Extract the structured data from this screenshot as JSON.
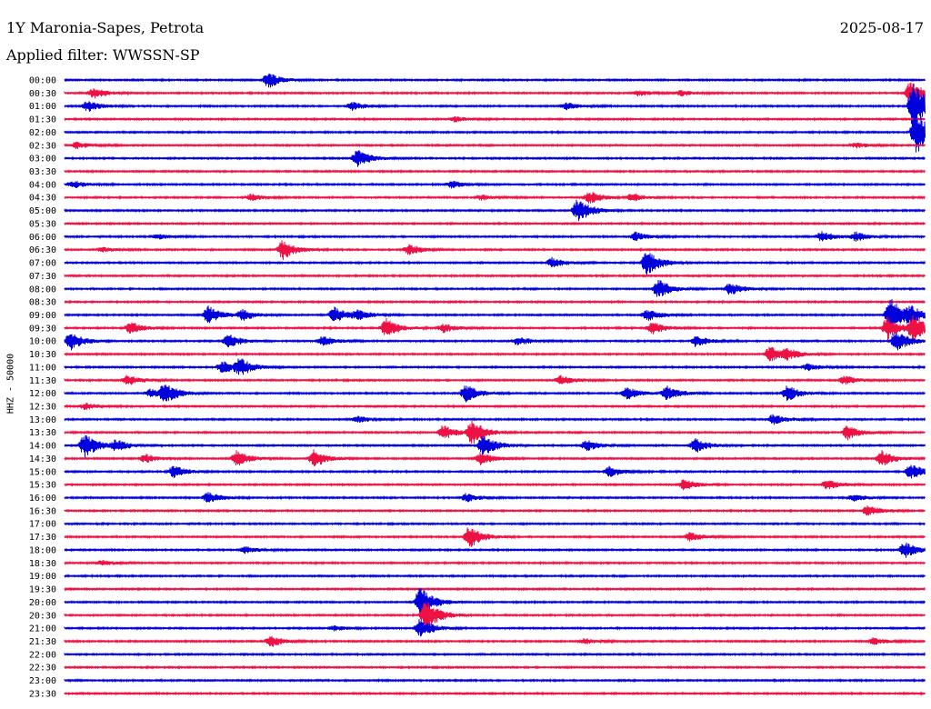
{
  "header": {
    "station": "1Y Maronia-Sapes, Petrota",
    "date": "2025-08-17",
    "filter": "Applied filter: WWSSN-SP"
  },
  "axis_label": "HHZ - 50000",
  "colors": {
    "even_trace": "#0000dd",
    "odd_trace": "#ee1144"
  },
  "chart_data": {
    "type": "line",
    "title": "1Y Maronia-Sapes, Petrota",
    "ylabel": "HHZ - 50000",
    "row_labels": [
      "00:00",
      "00:30",
      "01:00",
      "01:30",
      "02:00",
      "02:30",
      "03:00",
      "03:30",
      "04:00",
      "04:30",
      "05:00",
      "05:30",
      "06:00",
      "06:30",
      "07:00",
      "07:30",
      "08:00",
      "08:30",
      "09:00",
      "09:30",
      "10:00",
      "10:30",
      "11:00",
      "11:30",
      "12:00",
      "12:30",
      "13:00",
      "13:30",
      "14:00",
      "14:30",
      "15:00",
      "15:30",
      "16:00",
      "16:30",
      "17:00",
      "17:30",
      "18:00",
      "18:30",
      "19:00",
      "19:30",
      "20:00",
      "20:30",
      "21:00",
      "21:30",
      "22:00",
      "22:30",
      "23:00",
      "23:30"
    ],
    "note_colors": "rows alternate blue / red",
    "events": [
      {
        "row": 0,
        "minute": 7.1,
        "amp": 9
      },
      {
        "row": 1,
        "minute": 1.0,
        "amp": 6
      },
      {
        "row": 1,
        "minute": 20.0,
        "amp": 3
      },
      {
        "row": 1,
        "minute": 21.5,
        "amp": 3
      },
      {
        "row": 1,
        "minute": 29.5,
        "amp": 14
      },
      {
        "row": 2,
        "minute": 0.8,
        "amp": 6
      },
      {
        "row": 2,
        "minute": 10.0,
        "amp": 5
      },
      {
        "row": 2,
        "minute": 17.5,
        "amp": 4
      },
      {
        "row": 2,
        "minute": 29.6,
        "amp": 30
      },
      {
        "row": 3,
        "minute": 13.6,
        "amp": 3
      },
      {
        "row": 4,
        "minute": 29.7,
        "amp": 25
      },
      {
        "row": 5,
        "minute": 0.4,
        "amp": 4
      },
      {
        "row": 5,
        "minute": 27.6,
        "amp": 3
      },
      {
        "row": 6,
        "minute": 10.2,
        "amp": 10
      },
      {
        "row": 8,
        "minute": 0.3,
        "amp": 4
      },
      {
        "row": 8,
        "minute": 13.5,
        "amp": 4
      },
      {
        "row": 9,
        "minute": 6.5,
        "amp": 4
      },
      {
        "row": 9,
        "minute": 14.5,
        "amp": 3
      },
      {
        "row": 9,
        "minute": 18.3,
        "amp": 7
      },
      {
        "row": 9,
        "minute": 19.8,
        "amp": 5
      },
      {
        "row": 10,
        "minute": 17.9,
        "amp": 14
      },
      {
        "row": 12,
        "minute": 3.2,
        "amp": 3
      },
      {
        "row": 12,
        "minute": 19.9,
        "amp": 5
      },
      {
        "row": 12,
        "minute": 26.4,
        "amp": 6
      },
      {
        "row": 12,
        "minute": 27.6,
        "amp": 5
      },
      {
        "row": 13,
        "minute": 1.3,
        "amp": 3
      },
      {
        "row": 13,
        "minute": 7.6,
        "amp": 11
      },
      {
        "row": 13,
        "minute": 12.0,
        "amp": 6
      },
      {
        "row": 14,
        "minute": 17.0,
        "amp": 6
      },
      {
        "row": 14,
        "minute": 20.3,
        "amp": 14
      },
      {
        "row": 16,
        "minute": 20.7,
        "amp": 11
      },
      {
        "row": 16,
        "minute": 23.2,
        "amp": 7
      },
      {
        "row": 18,
        "minute": 5.0,
        "amp": 10
      },
      {
        "row": 18,
        "minute": 6.2,
        "amp": 6
      },
      {
        "row": 18,
        "minute": 9.4,
        "amp": 9
      },
      {
        "row": 18,
        "minute": 10.2,
        "amp": 5
      },
      {
        "row": 18,
        "minute": 20.3,
        "amp": 7
      },
      {
        "row": 18,
        "minute": 28.8,
        "amp": 20
      },
      {
        "row": 18,
        "minute": 29.5,
        "amp": 8
      },
      {
        "row": 19,
        "minute": 2.3,
        "amp": 7
      },
      {
        "row": 19,
        "minute": 11.2,
        "amp": 11
      },
      {
        "row": 19,
        "minute": 13.2,
        "amp": 5
      },
      {
        "row": 19,
        "minute": 20.5,
        "amp": 7
      },
      {
        "row": 19,
        "minute": 28.7,
        "amp": 13
      },
      {
        "row": 19,
        "minute": 29.6,
        "amp": 14
      },
      {
        "row": 20,
        "minute": 0.2,
        "amp": 10
      },
      {
        "row": 20,
        "minute": 5.7,
        "amp": 8
      },
      {
        "row": 20,
        "minute": 9.0,
        "amp": 6
      },
      {
        "row": 20,
        "minute": 15.8,
        "amp": 5
      },
      {
        "row": 20,
        "minute": 22.0,
        "amp": 7
      },
      {
        "row": 20,
        "minute": 29.0,
        "amp": 12
      },
      {
        "row": 21,
        "minute": 24.6,
        "amp": 9
      },
      {
        "row": 21,
        "minute": 25.2,
        "amp": 5
      },
      {
        "row": 22,
        "minute": 5.5,
        "amp": 7
      },
      {
        "row": 22,
        "minute": 6.1,
        "amp": 9
      },
      {
        "row": 22,
        "minute": 25.9,
        "amp": 4
      },
      {
        "row": 23,
        "minute": 2.2,
        "amp": 6
      },
      {
        "row": 23,
        "minute": 17.3,
        "amp": 6
      },
      {
        "row": 23,
        "minute": 27.2,
        "amp": 5
      },
      {
        "row": 24,
        "minute": 3.0,
        "amp": 5
      },
      {
        "row": 24,
        "minute": 3.5,
        "amp": 11
      },
      {
        "row": 24,
        "minute": 14.0,
        "amp": 10
      },
      {
        "row": 24,
        "minute": 19.6,
        "amp": 7
      },
      {
        "row": 24,
        "minute": 21.0,
        "amp": 8
      },
      {
        "row": 24,
        "minute": 25.2,
        "amp": 9
      },
      {
        "row": 25,
        "minute": 0.7,
        "amp": 4
      },
      {
        "row": 26,
        "minute": 10.2,
        "amp": 4
      },
      {
        "row": 26,
        "minute": 24.7,
        "amp": 6
      },
      {
        "row": 27,
        "minute": 13.2,
        "amp": 8
      },
      {
        "row": 27,
        "minute": 14.2,
        "amp": 14
      },
      {
        "row": 27,
        "minute": 27.3,
        "amp": 8
      },
      {
        "row": 28,
        "minute": 0.7,
        "amp": 14
      },
      {
        "row": 28,
        "minute": 1.8,
        "amp": 6
      },
      {
        "row": 28,
        "minute": 14.6,
        "amp": 12
      },
      {
        "row": 28,
        "minute": 18.2,
        "amp": 6
      },
      {
        "row": 28,
        "minute": 22.0,
        "amp": 8
      },
      {
        "row": 29,
        "minute": 2.8,
        "amp": 5
      },
      {
        "row": 29,
        "minute": 6.0,
        "amp": 9
      },
      {
        "row": 29,
        "minute": 8.7,
        "amp": 10
      },
      {
        "row": 29,
        "minute": 14.5,
        "amp": 7
      },
      {
        "row": 29,
        "minute": 28.5,
        "amp": 9
      },
      {
        "row": 30,
        "minute": 3.8,
        "amp": 7
      },
      {
        "row": 30,
        "minute": 19.0,
        "amp": 6
      },
      {
        "row": 30,
        "minute": 29.5,
        "amp": 9
      },
      {
        "row": 31,
        "minute": 21.6,
        "amp": 6
      },
      {
        "row": 31,
        "minute": 26.6,
        "amp": 6
      },
      {
        "row": 32,
        "minute": 5.0,
        "amp": 6
      },
      {
        "row": 32,
        "minute": 14.0,
        "amp": 5
      },
      {
        "row": 32,
        "minute": 27.5,
        "amp": 4
      },
      {
        "row": 33,
        "minute": 28.0,
        "amp": 6
      },
      {
        "row": 35,
        "minute": 14.1,
        "amp": 13
      },
      {
        "row": 35,
        "minute": 21.8,
        "amp": 5
      },
      {
        "row": 36,
        "minute": 6.3,
        "amp": 4
      },
      {
        "row": 36,
        "minute": 29.3,
        "amp": 9
      },
      {
        "row": 37,
        "minute": 1.3,
        "amp": 3
      },
      {
        "row": 40,
        "minute": 12.4,
        "amp": 18
      },
      {
        "row": 41,
        "minute": 12.6,
        "amp": 18
      },
      {
        "row": 42,
        "minute": 12.4,
        "amp": 11
      },
      {
        "row": 42,
        "minute": 9.4,
        "amp": 3
      },
      {
        "row": 43,
        "minute": 7.2,
        "amp": 6
      },
      {
        "row": 43,
        "minute": 18.1,
        "amp": 3
      },
      {
        "row": 43,
        "minute": 28.2,
        "amp": 4
      }
    ]
  }
}
